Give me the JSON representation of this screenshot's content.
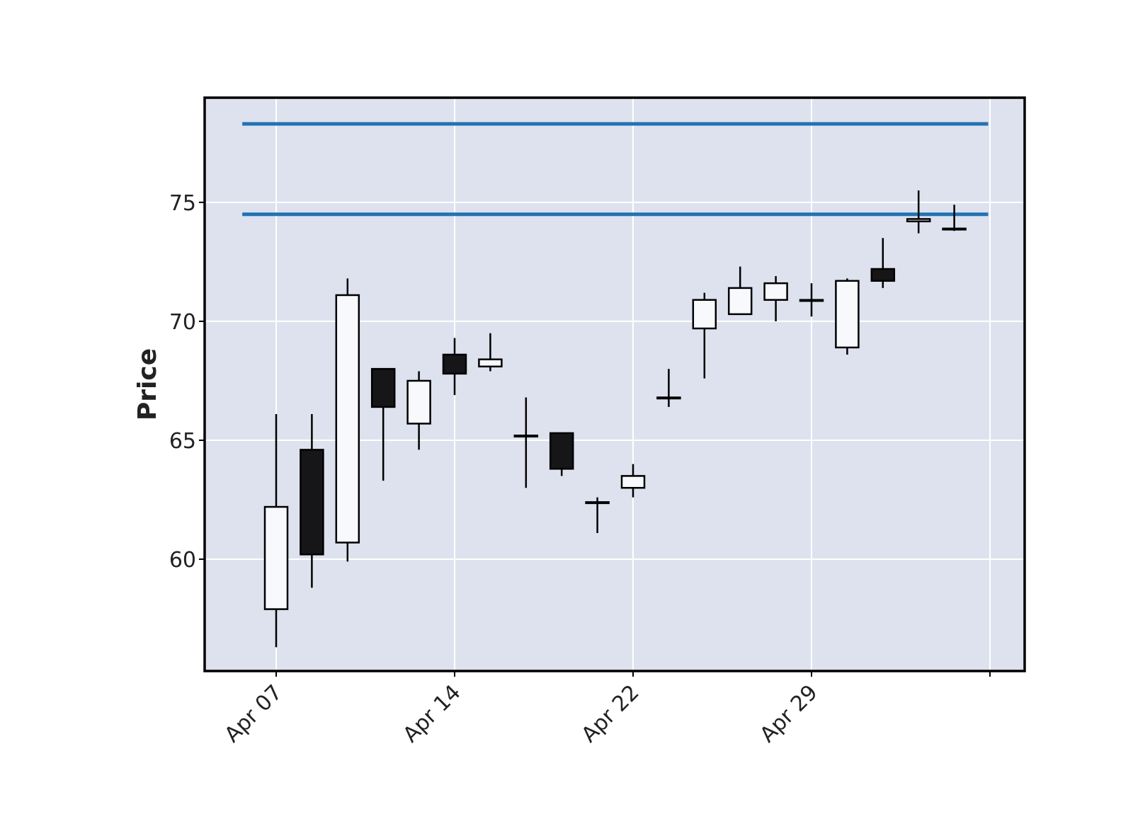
{
  "chart_data": {
    "type": "candlestick",
    "title": "",
    "xlabel": "",
    "ylabel": "Price",
    "ylim": [
      55.3,
      79.4
    ],
    "yticks": [
      60,
      65,
      70,
      75
    ],
    "xticks": [
      {
        "index": 0,
        "label": "Apr 07"
      },
      {
        "index": 5,
        "label": "Apr 14"
      },
      {
        "index": 10,
        "label": "Apr 22"
      },
      {
        "index": 15,
        "label": "Apr 29"
      },
      {
        "index": 20,
        "label": ""
      }
    ],
    "grid": true,
    "colors": {
      "background": "#dde2ee",
      "grid": "#ffffff",
      "up": "#f7f9fc",
      "down": "#161618",
      "edge": "#000000",
      "hline": "#2272b4",
      "tick_text": "#222222"
    },
    "candles": [
      {
        "open": 57.9,
        "high": 66.1,
        "low": 56.3,
        "close": 62.2
      },
      {
        "open": 64.6,
        "high": 66.1,
        "low": 58.8,
        "close": 60.2
      },
      {
        "open": 60.7,
        "high": 71.8,
        "low": 59.9,
        "close": 71.1
      },
      {
        "open": 68.0,
        "high": 68.0,
        "low": 63.3,
        "close": 66.4
      },
      {
        "open": 65.7,
        "high": 67.9,
        "low": 64.6,
        "close": 67.5
      },
      {
        "open": 68.6,
        "high": 69.3,
        "low": 66.9,
        "close": 67.8
      },
      {
        "open": 68.1,
        "high": 69.5,
        "low": 67.9,
        "close": 68.4
      },
      {
        "open": 65.2,
        "high": 66.8,
        "low": 63.0,
        "close": 65.2
      },
      {
        "open": 65.3,
        "high": 65.3,
        "low": 63.5,
        "close": 63.8
      },
      {
        "open": 62.4,
        "high": 62.6,
        "low": 61.1,
        "close": 62.4
      },
      {
        "open": 63.0,
        "high": 64.0,
        "low": 62.6,
        "close": 63.5
      },
      {
        "open": 66.8,
        "high": 68.0,
        "low": 66.4,
        "close": 66.8
      },
      {
        "open": 69.7,
        "high": 71.2,
        "low": 67.6,
        "close": 70.9
      },
      {
        "open": 70.3,
        "high": 72.3,
        "low": 70.3,
        "close": 71.4
      },
      {
        "open": 70.9,
        "high": 71.9,
        "low": 70.0,
        "close": 71.6
      },
      {
        "open": 70.9,
        "high": 71.6,
        "low": 70.2,
        "close": 70.9
      },
      {
        "open": 68.9,
        "high": 71.8,
        "low": 68.6,
        "close": 71.7
      },
      {
        "open": 72.2,
        "high": 73.5,
        "low": 71.4,
        "close": 71.7
      },
      {
        "open": 74.2,
        "high": 75.5,
        "low": 73.7,
        "close": 74.3
      },
      {
        "open": 73.9,
        "high": 74.9,
        "low": 73.8,
        "close": 73.9
      }
    ],
    "hlines": [
      78.3,
      74.5
    ]
  }
}
